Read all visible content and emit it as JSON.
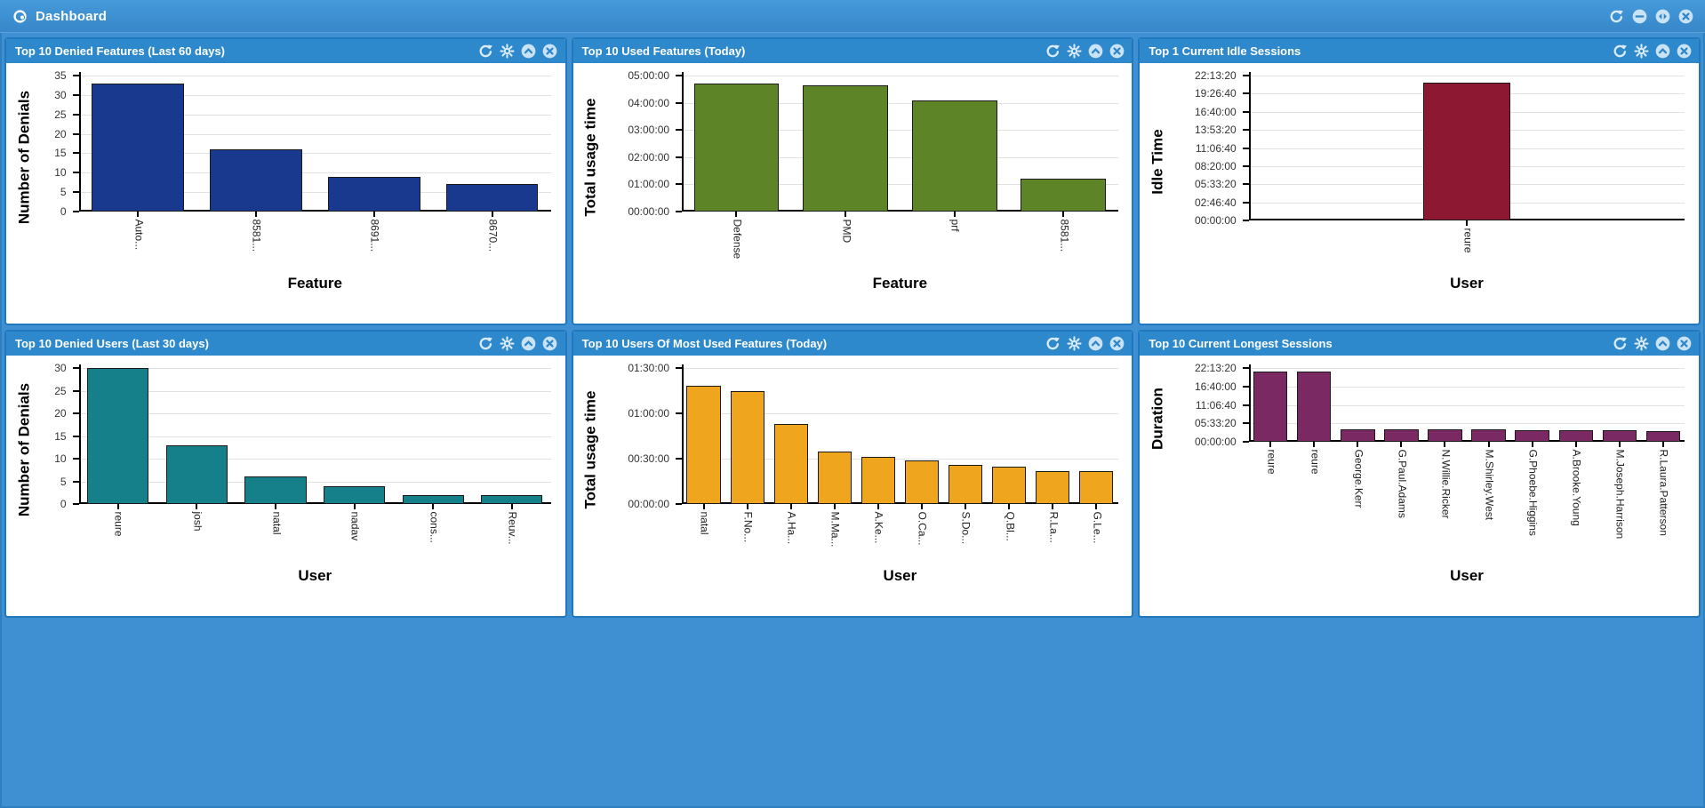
{
  "topbar": {
    "title": "Dashboard",
    "icons": [
      "dashboard-logo-icon",
      "refresh-icon",
      "minimize-icon",
      "swap-icon",
      "close-icon"
    ]
  },
  "panel_action_icons": [
    "refresh-icon",
    "settings-icon",
    "collapse-icon",
    "close-icon"
  ],
  "colors": {
    "page_background": "#3E90D2",
    "panel_header": "#2E89CC",
    "panel_border": "#2079BE",
    "bar_navy": "#19398E",
    "bar_green": "#5D8426",
    "bar_maroon": "#8C1931",
    "bar_teal": "#16808A",
    "bar_orange": "#EFA51E",
    "bar_purple": "#7B2962"
  },
  "chart_data": [
    {
      "type": "bar",
      "title": "Top 10 Denied Features (Last 60 days)",
      "ylabel": "Number of Denials",
      "xlabel": "Feature",
      "yticks": [
        0,
        5,
        10,
        15,
        20,
        25,
        30,
        35
      ],
      "ymax": 35,
      "grid": true,
      "legend": "none",
      "categories": [
        "Auto...",
        "8581...",
        "8691...",
        "8670..."
      ],
      "values": [
        33,
        16,
        9,
        7
      ],
      "color": "#19398E"
    },
    {
      "type": "bar",
      "title": "Top 10 Used Features (Today)",
      "ylabel": "Total usage time",
      "xlabel": "Feature",
      "yticks": [
        "00:00:00",
        "01:00:00",
        "02:00:00",
        "03:00:00",
        "04:00:00",
        "05:00:00"
      ],
      "ymax": "05:00:00",
      "grid": true,
      "legend": "none",
      "categories": [
        "Defense",
        "PMD",
        "prf",
        "8581..."
      ],
      "values": [
        "04:43:00",
        "04:39:00",
        "04:05:00",
        "01:13:00"
      ],
      "color": "#5D8426"
    },
    {
      "type": "bar",
      "title": "Top 1 Current Idle Sessions",
      "ylabel": "Idle Time",
      "xlabel": "User",
      "yticks": [
        "00:00:00",
        "02:46:40",
        "05:33:20",
        "08:20:00",
        "11:06:40",
        "13:53:20",
        "16:40:00",
        "19:26:40",
        "22:13:20"
      ],
      "ymax": "22:13:20",
      "grid": true,
      "legend": "none",
      "categories": [
        "reure"
      ],
      "values": [
        "21:05:00"
      ],
      "color": "#8C1931"
    },
    {
      "type": "bar",
      "title": "Top 10 Denied Users (Last 30 days)",
      "ylabel": "Number of Denials",
      "xlabel": "User",
      "yticks": [
        0,
        5,
        10,
        15,
        20,
        25,
        30
      ],
      "ymax": 30,
      "grid": true,
      "legend": "none",
      "categories": [
        "reure",
        "josh",
        "natal",
        "nadav",
        "cons...",
        "Reuv..."
      ],
      "values": [
        30,
        13,
        6,
        4,
        2,
        2
      ],
      "color": "#16808A"
    },
    {
      "type": "bar",
      "title": "Top 10 Users Of Most Used Features (Today)",
      "ylabel": "Total usage time",
      "xlabel": "User",
      "yticks": [
        "00:00:00",
        "00:30:00",
        "01:00:00",
        "01:30:00"
      ],
      "ymax": "01:30:00",
      "grid": true,
      "legend": "none",
      "categories": [
        "natal",
        "F.No...",
        "A.Ha...",
        "M.Ma...",
        "A.Ke...",
        "O.Ca...",
        "S.Do...",
        "Q.Bl...",
        "R.La...",
        "G.Le..."
      ],
      "values": [
        "01:18:00",
        "01:15:00",
        "00:53:00",
        "00:35:00",
        "00:31:00",
        "00:29:00",
        "00:26:00",
        "00:25:00",
        "00:22:00",
        "00:22:00"
      ],
      "color": "#EFA51E"
    },
    {
      "type": "bar",
      "title": "Top 10 Current Longest Sessions",
      "ylabel": "Duration",
      "xlabel": "User",
      "yticks": [
        "00:00:00",
        "05:33:20",
        "11:06:40",
        "16:40:00",
        "22:13:20"
      ],
      "ymax": "22:13:20",
      "grid": true,
      "legend": "none",
      "categories": [
        "reure",
        "reure",
        "George.Kerr",
        "G.Paul.Adams",
        "N.Willie.Ricker",
        "M.Shirley.West",
        "G.Phoebe.Higgins",
        "A.Brooke.Young",
        "M.Joseph.Harrison",
        "R.Laura.Patterson"
      ],
      "values": [
        "21:13:00",
        "21:13:00",
        "03:40:00",
        "03:40:00",
        "03:40:00",
        "03:40:00",
        "03:25:00",
        "03:25:00",
        "03:25:00",
        "03:10:00"
      ],
      "color": "#7B2962"
    }
  ]
}
